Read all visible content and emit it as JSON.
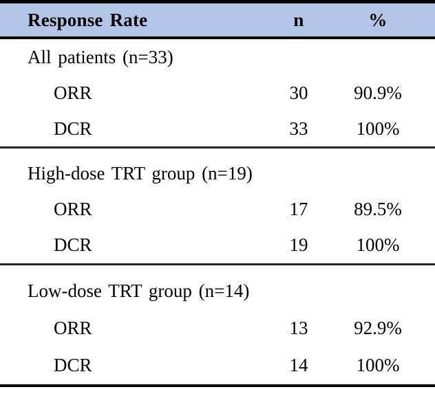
{
  "table": {
    "header": {
      "col1": "Response Rate",
      "col2": "n",
      "col3": "%"
    },
    "sections": [
      {
        "heading": "All patients (n=33)",
        "rows": [
          {
            "label": "ORR",
            "n": "30",
            "pct": "90.9%"
          },
          {
            "label": "DCR",
            "n": "33",
            "pct": "100%"
          }
        ]
      },
      {
        "heading": "High-dose TRT group (n=19)",
        "rows": [
          {
            "label": "ORR",
            "n": "17",
            "pct": "89.5%"
          },
          {
            "label": "DCR",
            "n": "19",
            "pct": "100%"
          }
        ]
      },
      {
        "heading": "Low-dose TRT group (n=14)",
        "rows": [
          {
            "label": "ORR",
            "n": "13",
            "pct": "92.9%"
          },
          {
            "label": "DCR",
            "n": "14",
            "pct": "100%"
          }
        ]
      }
    ],
    "colors": {
      "header_bg": "#B4C6E7",
      "border": "#000000",
      "divider": "#262626",
      "text": "#000000"
    }
  }
}
